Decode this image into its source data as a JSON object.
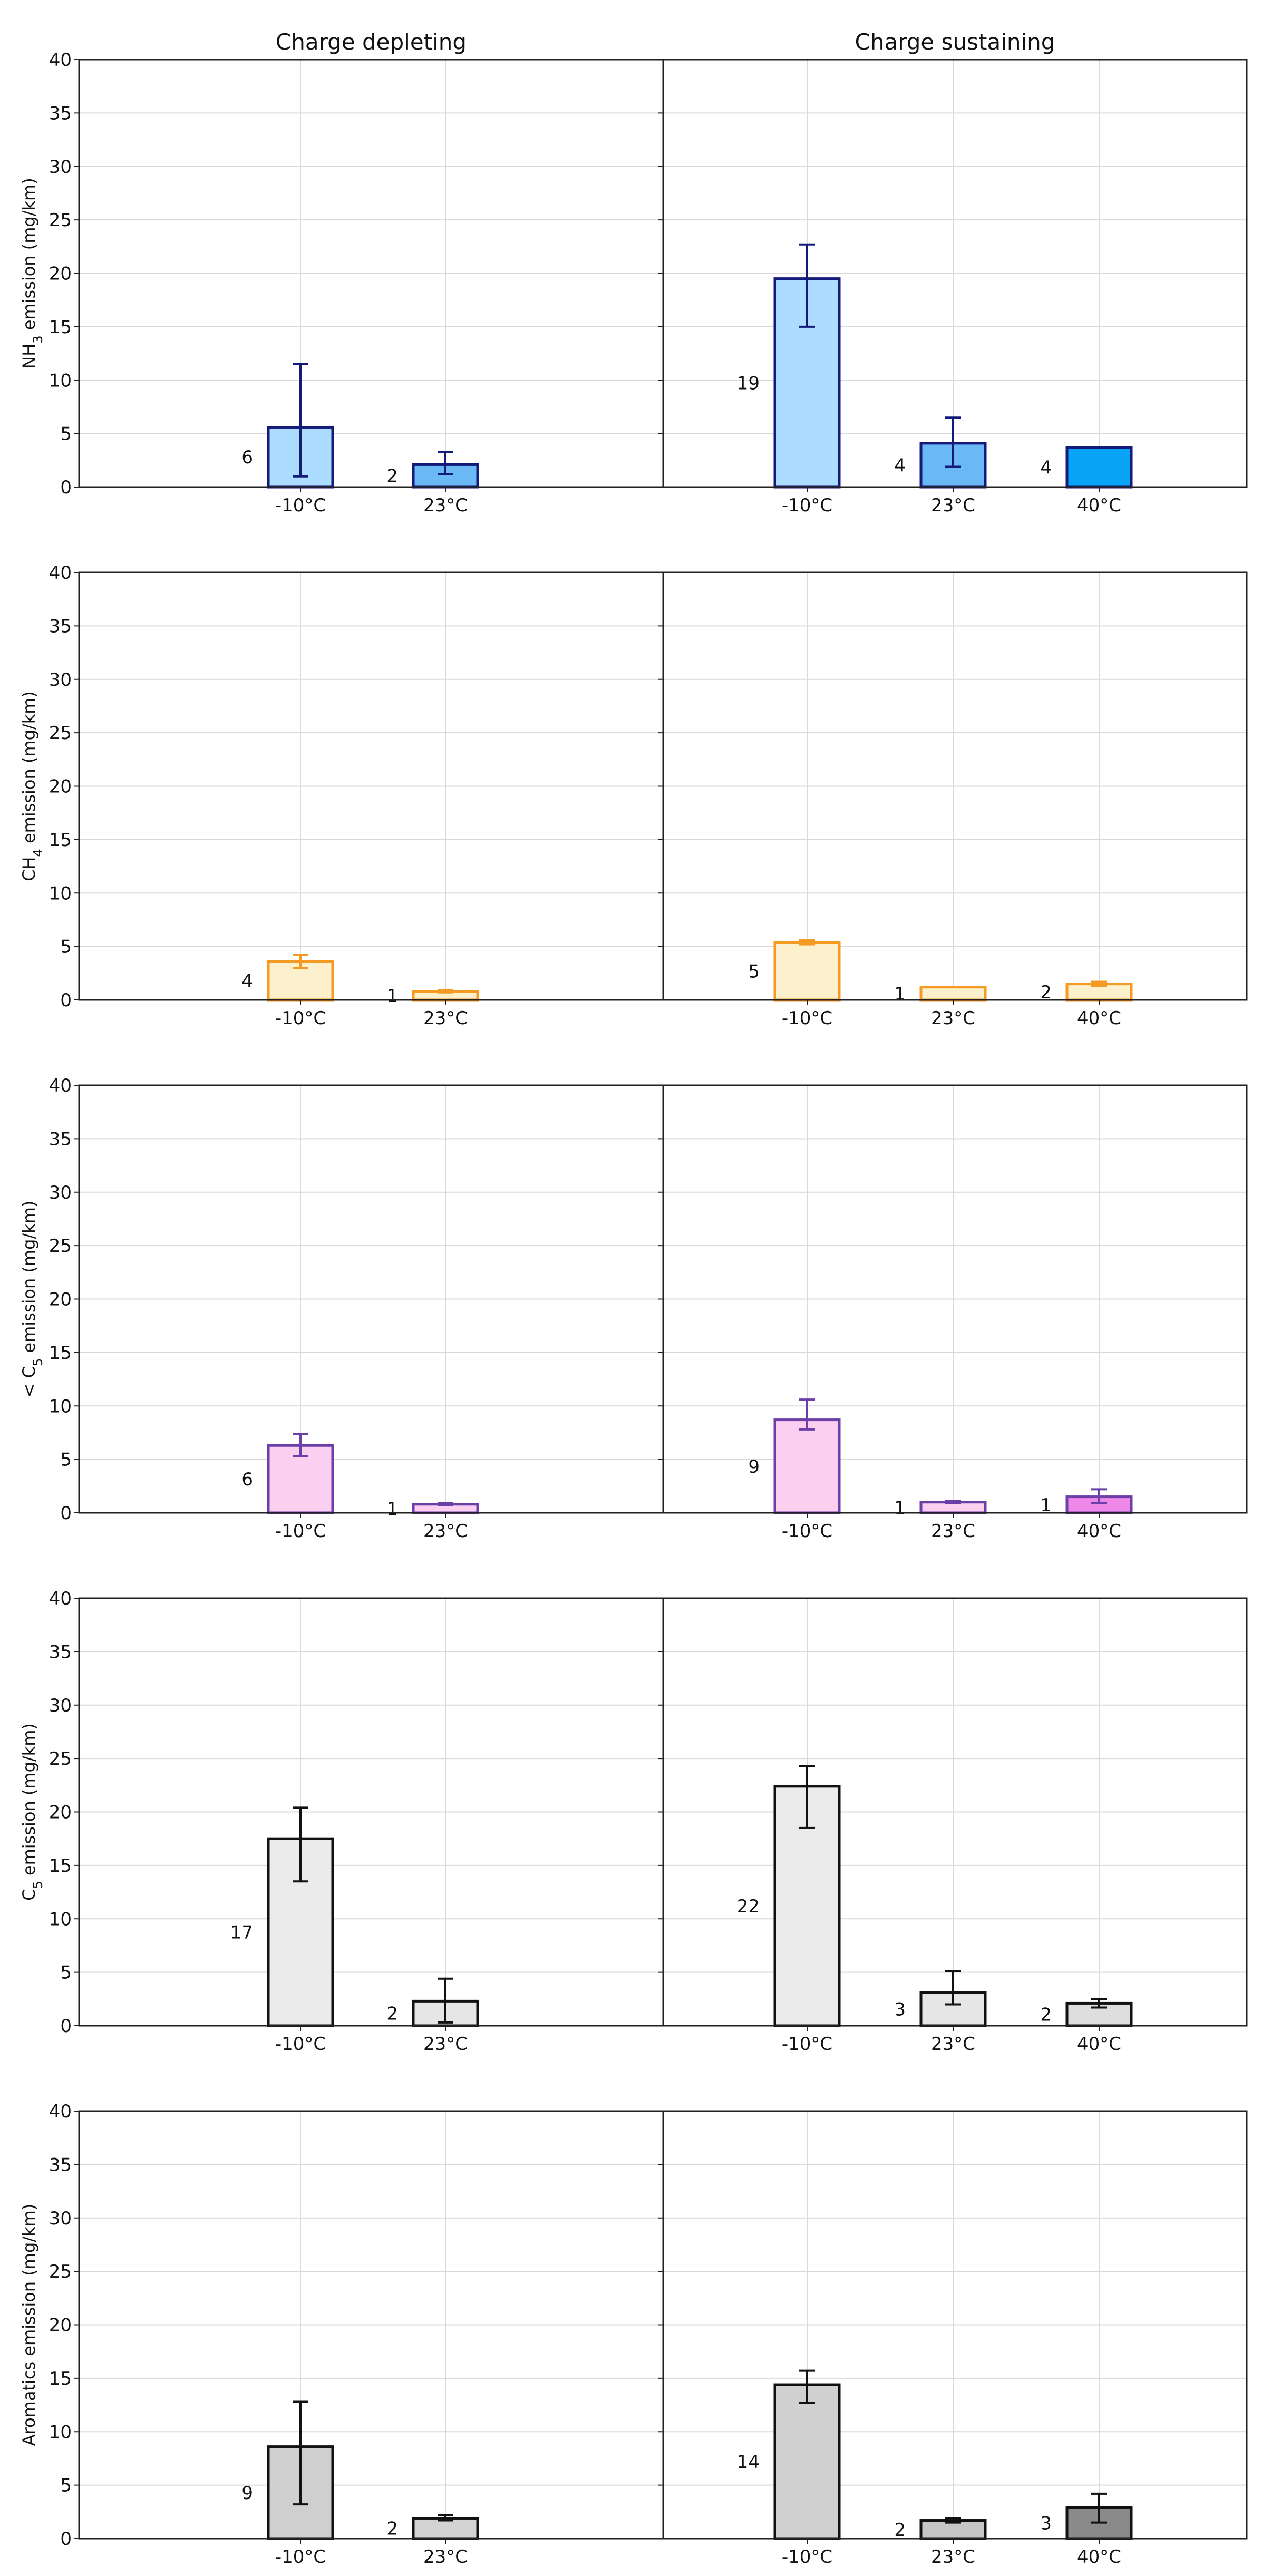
{
  "figure": {
    "column_titles": [
      "Charge depleting",
      "Charge sustaining"
    ]
  },
  "chart_data": [
    {
      "type": "bar",
      "ylabel": {
        "prefix": "NH",
        "sub": "3",
        "suffix": " emission (mg/km)"
      },
      "ylim": [
        0,
        40
      ],
      "yticks": [
        0,
        5,
        10,
        15,
        20,
        25,
        30,
        35,
        40
      ],
      "grid": true,
      "panels": [
        {
          "title": "Charge depleting",
          "categories": [
            "-10°C",
            "23°C"
          ],
          "values": [
            5.6,
            2.1
          ],
          "error_low": [
            1.0,
            1.2
          ],
          "error_high": [
            11.5,
            3.3
          ],
          "labels": [
            "6",
            "2"
          ],
          "colors": [
            "#acdcff",
            "#6ab9f5"
          ],
          "edge": "#141a7a",
          "err": "#141a7a"
        },
        {
          "title": "Charge sustaining",
          "categories": [
            "-10°C",
            "23°C",
            "40°C"
          ],
          "values": [
            19.5,
            4.1,
            3.7
          ],
          "error_low": [
            15.0,
            1.9,
            null
          ],
          "error_high": [
            22.7,
            6.5,
            null
          ],
          "labels": [
            "19",
            "4",
            "4"
          ],
          "colors": [
            "#acdcff",
            "#6ab9f5",
            "#0aa4f7"
          ],
          "edge": "#141a7a",
          "err": "#141a7a"
        }
      ]
    },
    {
      "type": "bar",
      "ylabel": {
        "prefix": "CH",
        "sub": "4",
        "suffix": " emission (mg/km)"
      },
      "ylim": [
        0,
        40
      ],
      "yticks": [
        0,
        5,
        10,
        15,
        20,
        25,
        30,
        35,
        40
      ],
      "grid": true,
      "panels": [
        {
          "title": "Charge depleting",
          "categories": [
            "-10°C",
            "23°C"
          ],
          "values": [
            3.6,
            0.8
          ],
          "error_low": [
            3.0,
            0.7
          ],
          "error_high": [
            4.2,
            0.9
          ],
          "labels": [
            "4",
            "1"
          ],
          "colors": [
            "#fdf0cc",
            "#fdf0cc"
          ],
          "edge": "#f59a22",
          "err": "#f59a22"
        },
        {
          "title": "Charge sustaining",
          "categories": [
            "-10°C",
            "23°C",
            "40°C"
          ],
          "values": [
            5.4,
            1.2,
            1.5
          ],
          "error_low": [
            5.2,
            null,
            1.3
          ],
          "error_high": [
            5.6,
            null,
            1.7
          ],
          "labels": [
            "5",
            "1",
            "2"
          ],
          "colors": [
            "#fdf0cc",
            "#fdf0cc",
            "#fdf0cc"
          ],
          "edge": "#f59a22",
          "err": "#f59a22"
        }
      ]
    },
    {
      "type": "bar",
      "ylabel": {
        "prefix": "< C",
        "sub": "5",
        "suffix": " emission (mg/km)"
      },
      "ylim": [
        0,
        40
      ],
      "yticks": [
        0,
        5,
        10,
        15,
        20,
        25,
        30,
        35,
        40
      ],
      "grid": true,
      "panels": [
        {
          "title": "Charge depleting",
          "categories": [
            "-10°C",
            "23°C"
          ],
          "values": [
            6.3,
            0.8
          ],
          "error_low": [
            5.3,
            0.7
          ],
          "error_high": [
            7.4,
            0.9
          ],
          "labels": [
            "6",
            "1"
          ],
          "colors": [
            "#fccef0",
            "#fccef0"
          ],
          "edge": "#6a3fa8",
          "err": "#6a3fa8"
        },
        {
          "title": "Charge sustaining",
          "categories": [
            "-10°C",
            "23°C",
            "40°C"
          ],
          "values": [
            8.7,
            1.0,
            1.5
          ],
          "error_low": [
            7.8,
            0.9,
            0.9
          ],
          "error_high": [
            10.6,
            1.1,
            2.2
          ],
          "labels": [
            "9",
            "1",
            "1"
          ],
          "colors": [
            "#fccef0",
            "#fccef0",
            "#f088ea"
          ],
          "edge": "#6a3fa8",
          "err": "#6a3fa8"
        }
      ]
    },
    {
      "type": "bar",
      "ylabel": {
        "prefix": "C",
        "sub": "5",
        "suffix": " emission (mg/km)"
      },
      "ylim": [
        0,
        40
      ],
      "yticks": [
        0,
        5,
        10,
        15,
        20,
        25,
        30,
        35,
        40
      ],
      "grid": true,
      "panels": [
        {
          "title": "Charge depleting",
          "categories": [
            "-10°C",
            "23°C"
          ],
          "values": [
            17.5,
            2.3
          ],
          "error_low": [
            13.5,
            0.3
          ],
          "error_high": [
            20.4,
            4.4
          ],
          "labels": [
            "17",
            "2"
          ],
          "colors": [
            "#ebebeb",
            "#e6e6e6"
          ],
          "edge": "#111111",
          "err": "#111111"
        },
        {
          "title": "Charge sustaining",
          "categories": [
            "-10°C",
            "23°C",
            "40°C"
          ],
          "values": [
            22.4,
            3.1,
            2.1
          ],
          "error_low": [
            18.5,
            2.0,
            1.7
          ],
          "error_high": [
            24.3,
            5.1,
            2.5
          ],
          "labels": [
            "22",
            "3",
            "2"
          ],
          "colors": [
            "#ebebeb",
            "#e6e6e6",
            "#dedede"
          ],
          "edge": "#111111",
          "err": "#111111"
        }
      ]
    },
    {
      "type": "bar",
      "ylabel": {
        "prefix": "Aromatics emission (mg/km)",
        "sub": "",
        "suffix": ""
      },
      "ylim": [
        0,
        40
      ],
      "yticks": [
        0,
        5,
        10,
        15,
        20,
        25,
        30,
        35,
        40
      ],
      "grid": true,
      "panels": [
        {
          "title": "Charge depleting",
          "categories": [
            "-10°C",
            "23°C"
          ],
          "values": [
            8.6,
            1.9
          ],
          "error_low": [
            3.2,
            1.7
          ],
          "error_high": [
            12.8,
            2.2
          ],
          "labels": [
            "9",
            "2"
          ],
          "colors": [
            "#cfcfcf",
            "#d3d3d3"
          ],
          "edge": "#111111",
          "err": "#111111"
        },
        {
          "title": "Charge sustaining",
          "categories": [
            "-10°C",
            "23°C",
            "40°C"
          ],
          "values": [
            14.4,
            1.7,
            2.9
          ],
          "error_low": [
            12.7,
            1.5,
            1.5
          ],
          "error_high": [
            15.7,
            1.9,
            4.2
          ],
          "labels": [
            "14",
            "2",
            "3"
          ],
          "colors": [
            "#d0d0d0",
            "#c6c6c6",
            "#8a8a8a"
          ],
          "edge": "#111111",
          "err": "#111111"
        }
      ]
    }
  ]
}
